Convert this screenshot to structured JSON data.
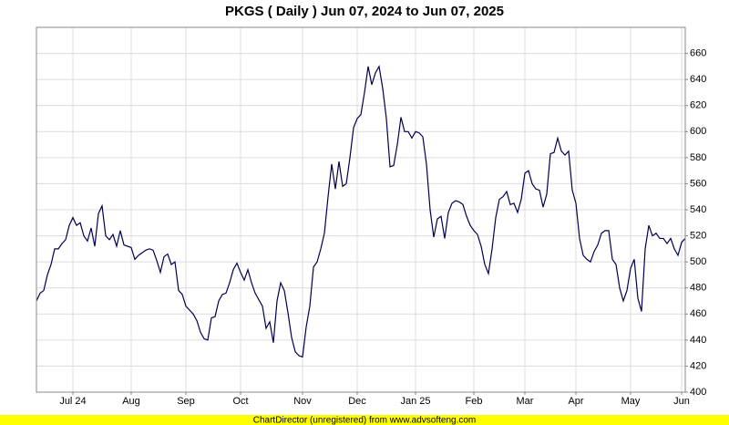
{
  "chart_data": {
    "type": "line",
    "title": "PKGS ( Daily ) Jun 07, 2024 to Jun 07, 2025",
    "categories": [
      null,
      null,
      null,
      null,
      null,
      null,
      null,
      null,
      null,
      null,
      "Jul 24",
      null,
      null,
      null,
      null,
      null,
      null,
      null,
      null,
      null,
      null,
      null,
      null,
      null,
      null,
      null,
      "Aug",
      null,
      null,
      null,
      null,
      null,
      null,
      null,
      null,
      null,
      null,
      null,
      null,
      null,
      null,
      "Sep",
      null,
      null,
      null,
      null,
      null,
      null,
      null,
      null,
      null,
      null,
      null,
      null,
      null,
      null,
      "Oct",
      null,
      null,
      null,
      null,
      null,
      null,
      null,
      null,
      null,
      null,
      null,
      null,
      null,
      null,
      null,
      null,
      "Nov",
      null,
      null,
      null,
      null,
      null,
      null,
      null,
      null,
      null,
      null,
      null,
      null,
      null,
      null,
      "Dec",
      null,
      null,
      null,
      null,
      null,
      null,
      null,
      null,
      null,
      null,
      null,
      null,
      null,
      null,
      null,
      "Jan 25",
      null,
      null,
      null,
      null,
      null,
      null,
      null,
      null,
      null,
      null,
      null,
      null,
      null,
      null,
      null,
      "Feb",
      null,
      null,
      null,
      null,
      null,
      null,
      null,
      null,
      null,
      null,
      null,
      null,
      null,
      "Mar",
      null,
      null,
      null,
      null,
      null,
      null,
      null,
      null,
      null,
      null,
      null,
      null,
      null,
      "Apr",
      null,
      null,
      null,
      null,
      null,
      null,
      null,
      null,
      null,
      null,
      null,
      null,
      null,
      null,
      "May",
      null,
      null,
      null,
      null,
      null,
      null,
      null,
      null,
      null,
      null,
      null,
      null,
      null,
      "Jun",
      null
    ],
    "values": [
      470,
      476,
      478,
      490,
      498,
      510,
      510,
      514,
      517,
      528,
      534,
      528,
      530,
      520,
      516,
      526,
      512,
      537,
      543,
      520,
      517,
      521,
      512,
      524,
      513,
      512,
      511,
      502,
      505,
      507,
      509,
      510,
      509,
      501,
      492,
      504,
      506,
      498,
      500,
      478,
      475,
      466,
      463,
      460,
      455,
      446,
      441,
      440,
      457,
      458,
      470,
      475,
      476,
      484,
      494,
      499,
      492,
      486,
      494,
      484,
      476,
      471,
      466,
      449,
      454,
      438,
      470,
      484,
      478,
      461,
      442,
      431,
      428,
      427,
      450,
      466,
      496,
      500,
      510,
      522,
      550,
      575,
      556,
      577,
      558,
      560,
      580,
      603,
      610,
      613,
      630,
      650,
      636,
      645,
      650,
      633,
      610,
      573,
      574,
      590,
      611,
      600,
      600,
      595,
      600,
      599,
      596,
      575,
      540,
      519,
      533,
      535,
      518,
      538,
      545,
      547,
      546,
      544,
      535,
      528,
      524,
      521,
      512,
      498,
      491,
      510,
      534,
      548,
      550,
      554,
      544,
      545,
      538,
      548,
      568,
      570,
      560,
      556,
      555,
      542,
      552,
      583,
      584,
      595,
      585,
      582,
      585,
      555,
      545,
      518,
      505,
      502,
      500,
      508,
      513,
      522,
      524,
      524,
      502,
      498,
      480,
      470,
      478,
      495,
      502,
      472,
      462,
      510,
      528,
      520,
      522,
      518,
      518,
      514,
      518,
      510,
      505,
      515,
      518
    ],
    "color": "#000050",
    "ylim": [
      400,
      680
    ],
    "yticks": [
      400,
      420,
      440,
      460,
      480,
      500,
      520,
      540,
      560,
      580,
      600,
      620,
      640,
      660
    ],
    "grid": true
  },
  "footer": "ChartDirector (unregistered) from www.advsofteng.com"
}
